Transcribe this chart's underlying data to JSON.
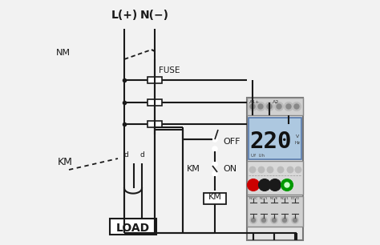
{
  "bg_color": "#f2f2f2",
  "line_color": "#1a1a1a",
  "L_label": "L(+)",
  "N_label": "N(−)",
  "NM_label": "NM",
  "KM_label": "KM",
  "LOAD_label": "LOAD",
  "FUSE_label": "FUSE",
  "OFF_label": "OFF",
  "ON_label": "ON",
  "KM_switch_label": "KM",
  "KM_coil_label": "KM",
  "relay_display": "220",
  "relay_bg": "#adc8e0",
  "relay_body_color": "#e4e4e4",
  "relay_border_color": "#888888",
  "relay_term_color": "#cccccc",
  "red_dot_color": "#cc0000",
  "green_dot_color": "#009900",
  "black_dot_color": "#1a1a1a",
  "fuse_color": "#ffffff",
  "switch_open_color": "#1a1a1a"
}
